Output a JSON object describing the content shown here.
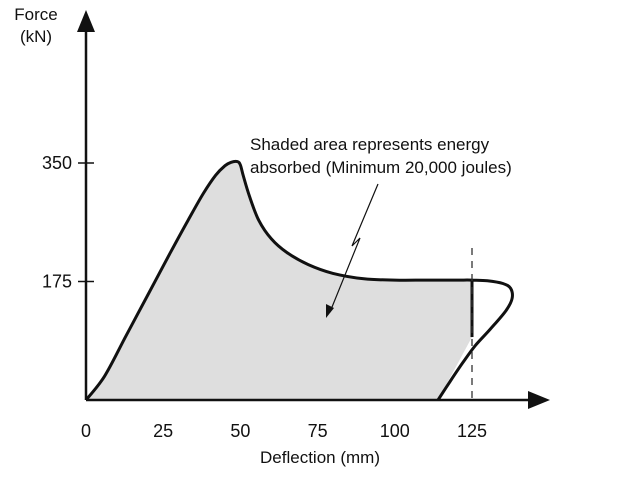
{
  "chart_data": {
    "type": "area",
    "title": "",
    "xlabel": "Deflection (mm)",
    "ylabel_line1": "Force",
    "ylabel_line2": "(kN)",
    "xlim": [
      0,
      145
    ],
    "ylim": [
      0,
      470
    ],
    "x_ticks": [
      0,
      25,
      50,
      75,
      100,
      125
    ],
    "x_tick_labels": [
      "0",
      "25",
      "50",
      "75",
      "100",
      "125"
    ],
    "y_ticks": [
      175,
      350
    ],
    "y_tick_labels": [
      "175",
      "350"
    ],
    "annotation_line1": "Shaded area represents energy",
    "annotation_line2": "absorbed (Minimum 20,000 joules)",
    "reference_line_x": 125,
    "series": [
      {
        "points": [
          [
            0,
            0
          ],
          [
            6,
            35
          ],
          [
            13,
            95
          ],
          [
            20,
            155
          ],
          [
            27,
            215
          ],
          [
            33,
            265
          ],
          [
            38,
            305
          ],
          [
            42,
            332
          ],
          [
            45,
            346
          ],
          [
            47,
            351
          ],
          [
            49,
            352
          ],
          [
            50,
            347
          ],
          [
            51,
            330
          ],
          [
            53,
            300
          ],
          [
            56,
            265
          ],
          [
            60,
            238
          ],
          [
            65,
            218
          ],
          [
            72,
            200
          ],
          [
            80,
            187
          ],
          [
            90,
            179
          ],
          [
            100,
            177
          ],
          [
            110,
            177
          ],
          [
            120,
            177
          ],
          [
            125,
            177
          ],
          [
            130,
            176
          ],
          [
            135,
            172
          ],
          [
            137.5,
            165
          ],
          [
            138,
            150
          ],
          [
            136,
            132
          ],
          [
            131,
            105
          ],
          [
            126,
            80
          ],
          [
            122,
            55
          ],
          [
            118,
            28
          ],
          [
            114,
            0
          ]
        ],
        "unloading_at_125": 93,
        "fill_color": "#dedede",
        "line_color": "#111111"
      }
    ]
  }
}
